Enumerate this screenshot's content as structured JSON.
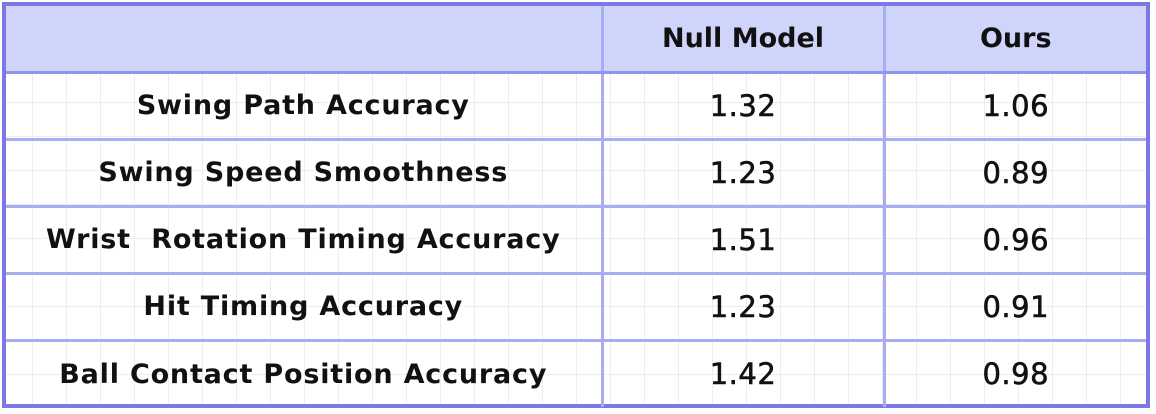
{
  "chart_data": {
    "type": "table",
    "columns": [
      "",
      "Null Model",
      "Ours"
    ],
    "rows": [
      {
        "metric": "Swing Path Accuracy",
        "null_model": "1.32",
        "ours": "1.06"
      },
      {
        "metric": "Swing Speed Smoothness",
        "null_model": "1.23",
        "ours": "0.89"
      },
      {
        "metric": "Wrist  Rotation Timing Accuracy",
        "null_model": "1.51",
        "ours": "0.96"
      },
      {
        "metric": "Hit Timing Accuracy",
        "null_model": "1.23",
        "ours": "0.91"
      },
      {
        "metric": "Ball Contact Position Accuracy",
        "null_model": "1.42",
        "ours": "0.98"
      }
    ]
  },
  "colors": {
    "border": "#7e77e6",
    "header_bg": "#cfd4fb",
    "grid_line": "#a7adf0"
  }
}
